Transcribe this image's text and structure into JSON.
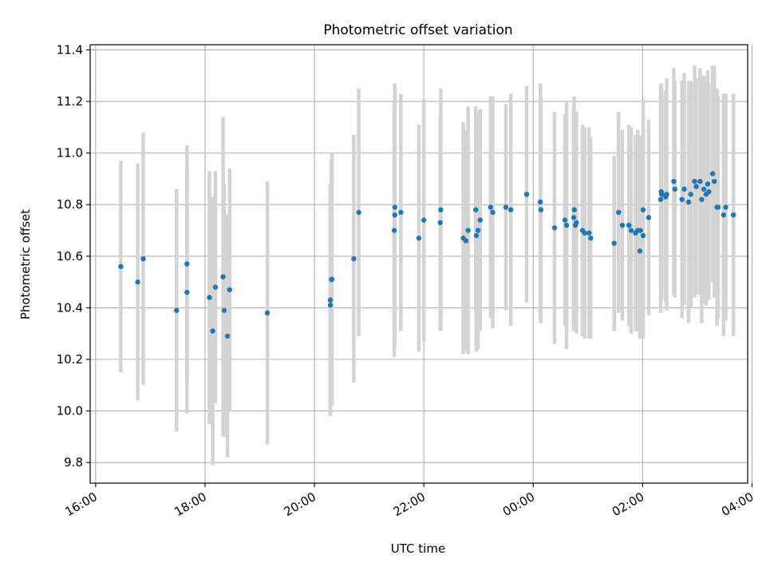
{
  "chart_data": {
    "type": "scatter",
    "title": "Photometric offset variation",
    "xlabel": "UTC time",
    "ylabel": "Photometric offset",
    "x_unit": "hours since 16:00 UTC",
    "xlim": [
      -0.1,
      11.92
    ],
    "ylim": [
      9.72,
      11.42
    ],
    "x_ticks": [
      {
        "value": 0,
        "label": "16:00"
      },
      {
        "value": 2,
        "label": "18:00"
      },
      {
        "value": 4,
        "label": "20:00"
      },
      {
        "value": 6,
        "label": "22:00"
      },
      {
        "value": 8,
        "label": "00:00"
      },
      {
        "value": 10,
        "label": "02:00"
      },
      {
        "value": 12,
        "label": "04:00"
      }
    ],
    "y_ticks": [
      {
        "value": 9.8,
        "label": "9.8"
      },
      {
        "value": 10.0,
        "label": "10.0"
      },
      {
        "value": 10.2,
        "label": "10.2"
      },
      {
        "value": 10.4,
        "label": "10.4"
      },
      {
        "value": 10.6,
        "label": "10.6"
      },
      {
        "value": 10.8,
        "label": "10.8"
      },
      {
        "value": 11.0,
        "label": "11.0"
      },
      {
        "value": 11.2,
        "label": "11.2"
      },
      {
        "value": 11.4,
        "label": "11.4"
      }
    ],
    "grid": true,
    "colors": {
      "point": "#1f77b4",
      "errorbar": "#d3d3d3",
      "grid": "#b0b0b0"
    },
    "series": [
      {
        "name": "offset",
        "x": [
          0.46,
          0.77,
          0.87,
          1.48,
          1.67,
          1.67,
          2.08,
          2.14,
          2.19,
          2.33,
          2.35,
          2.41,
          2.45,
          3.14,
          4.29,
          4.31,
          4.29,
          4.32,
          4.72,
          4.81,
          5.46,
          5.47,
          5.47,
          5.58,
          5.91,
          6.0,
          6.3,
          6.31,
          6.72,
          6.77,
          6.81,
          6.95,
          6.96,
          6.99,
          7.03,
          7.22,
          7.26,
          7.5,
          7.59,
          7.88,
          8.13,
          8.14,
          8.39,
          8.58,
          8.61,
          8.74,
          8.75,
          8.77,
          8.79,
          8.9,
          8.94,
          9.02,
          9.05,
          9.48,
          9.56,
          9.63,
          9.75,
          9.79,
          9.87,
          9.91,
          9.95,
          9.96,
          10.01,
          10.01,
          10.11,
          10.33,
          10.34,
          10.35,
          10.42,
          10.44,
          10.57,
          10.59,
          10.72,
          10.76,
          10.84,
          10.88,
          10.95,
          10.98,
          11.05,
          11.08,
          11.12,
          11.16,
          11.19,
          11.21,
          11.28,
          11.31,
          11.36,
          11.38,
          11.48,
          11.52,
          11.66
        ],
        "y": [
          10.56,
          10.5,
          10.59,
          10.39,
          10.46,
          10.57,
          10.44,
          10.31,
          10.48,
          10.52,
          10.39,
          10.29,
          10.47,
          10.38,
          10.43,
          10.51,
          10.41,
          10.51,
          10.59,
          10.77,
          10.7,
          10.76,
          10.79,
          10.77,
          10.67,
          10.74,
          10.73,
          10.78,
          10.67,
          10.66,
          10.7,
          10.78,
          10.68,
          10.7,
          10.74,
          10.79,
          10.77,
          10.79,
          10.78,
          10.84,
          10.81,
          10.78,
          10.71,
          10.74,
          10.72,
          10.75,
          10.78,
          10.72,
          10.73,
          10.7,
          10.69,
          10.69,
          10.67,
          10.65,
          10.77,
          10.72,
          10.72,
          10.7,
          10.69,
          10.7,
          10.62,
          10.7,
          10.78,
          10.68,
          10.75,
          10.82,
          10.85,
          10.84,
          10.83,
          10.84,
          10.89,
          10.86,
          10.82,
          10.86,
          10.81,
          10.84,
          10.89,
          10.87,
          10.89,
          10.82,
          10.86,
          10.84,
          10.88,
          10.85,
          10.92,
          10.89,
          10.79,
          10.79,
          10.76,
          10.79,
          10.76
        ],
        "yerr": [
          0.41,
          0.46,
          0.49,
          0.47,
          0.47,
          0.46,
          0.49,
          0.52,
          0.45,
          0.62,
          0.49,
          0.47,
          0.47,
          0.51,
          0.45,
          0.47,
          0.43,
          0.49,
          0.48,
          0.48,
          0.49,
          0.51,
          0.48,
          0.46,
          0.44,
          0.47,
          0.42,
          0.47,
          0.45,
          0.43,
          0.48,
          0.4,
          0.45,
          0.46,
          0.43,
          0.43,
          0.45,
          0.4,
          0.45,
          0.42,
          0.46,
          0.44,
          0.45,
          0.41,
          0.48,
          0.44,
          0.44,
          0.41,
          0.43,
          0.41,
          0.41,
          0.41,
          0.39,
          0.34,
          0.39,
          0.37,
          0.39,
          0.4,
          0.38,
          0.39,
          0.34,
          0.37,
          0.43,
          0.4,
          0.38,
          0.44,
          0.42,
          0.41,
          0.41,
          0.45,
          0.44,
          0.42,
          0.46,
          0.45,
          0.47,
          0.44,
          0.45,
          0.42,
          0.44,
          0.48,
          0.44,
          0.43,
          0.44,
          0.42,
          0.42,
          0.45,
          0.46,
          0.43,
          0.47,
          0.44,
          0.47
        ]
      }
    ]
  }
}
